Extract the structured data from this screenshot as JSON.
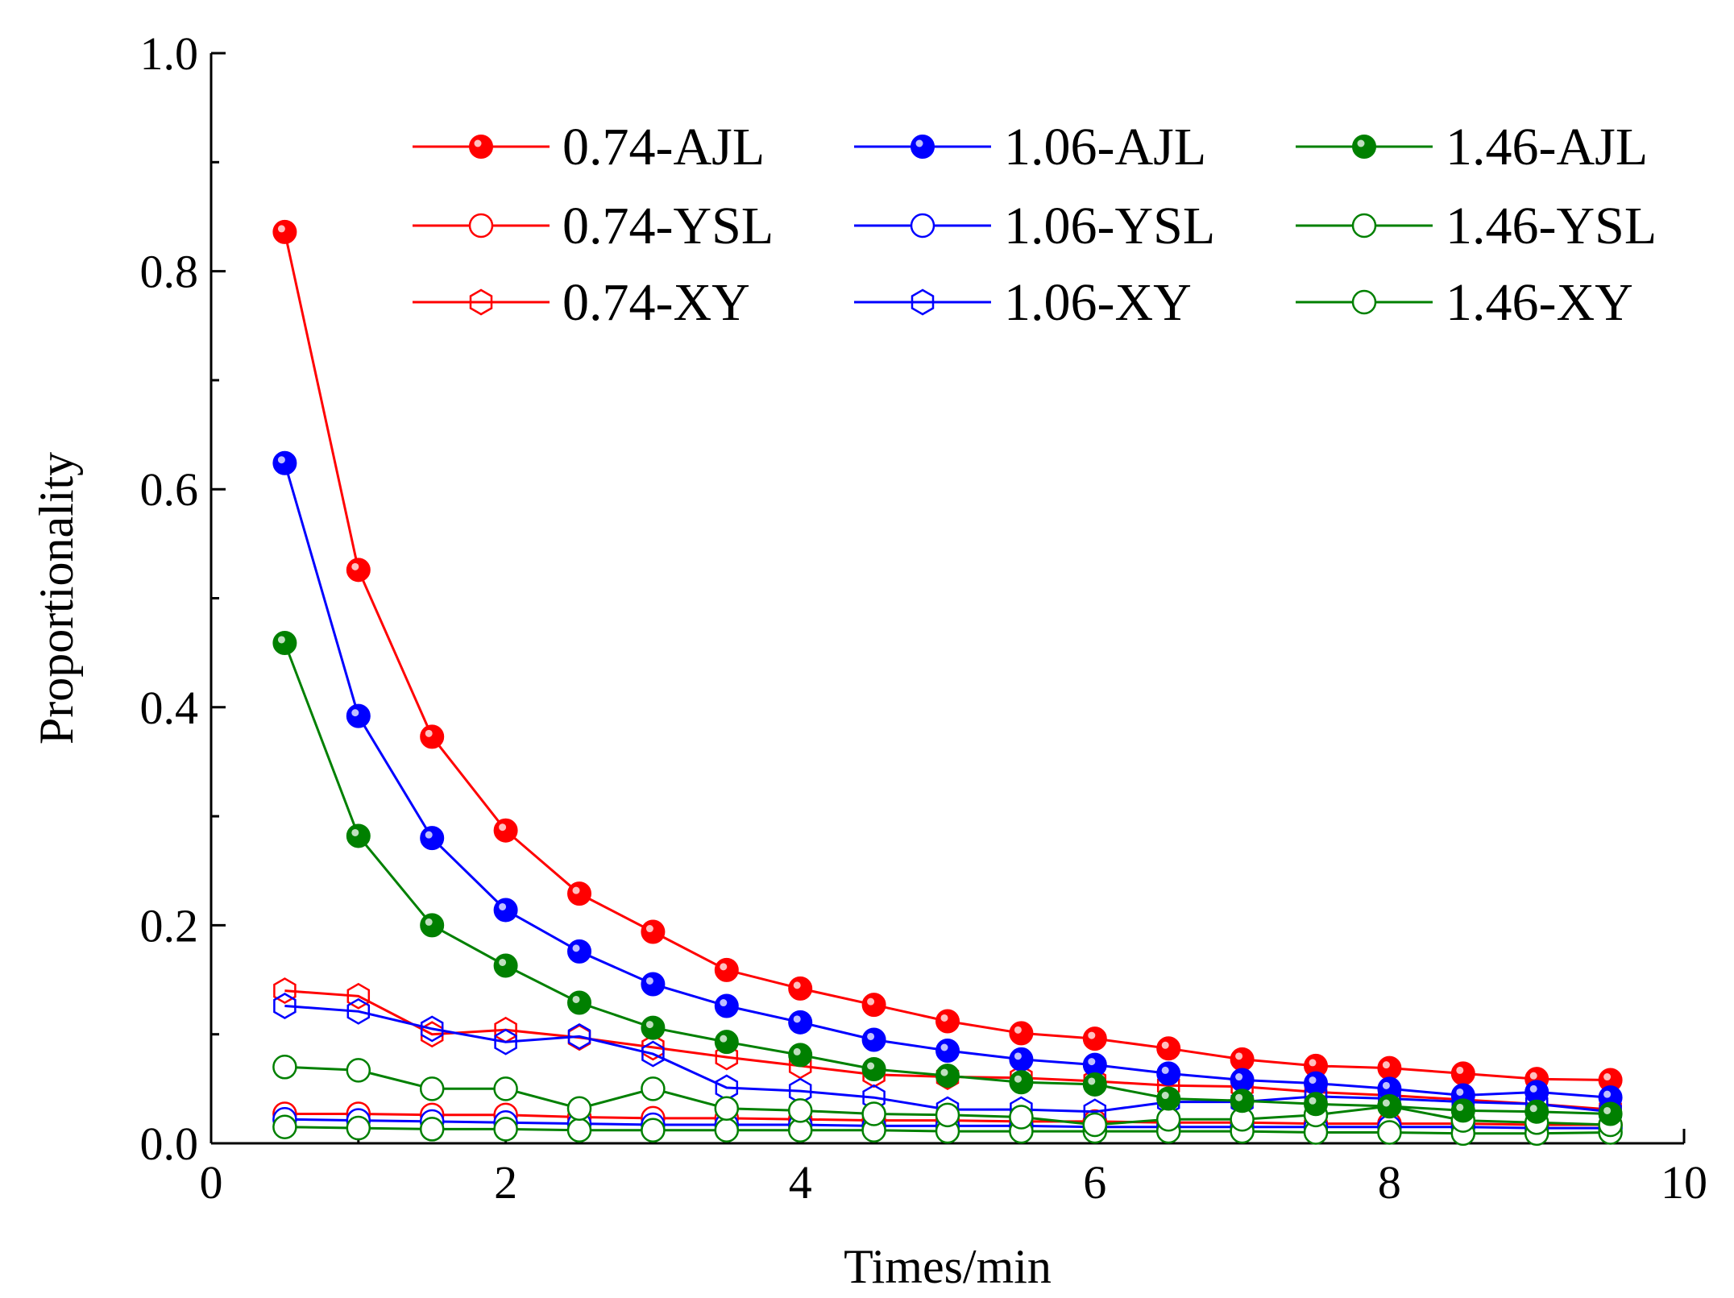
{
  "chart_data": {
    "type": "line",
    "xlabel": "Times/min",
    "ylabel": "Proportionality",
    "xlim": [
      0,
      10
    ],
    "ylim": [
      0,
      1.0
    ],
    "x_ticks": [
      "0",
      "2",
      "4",
      "6",
      "8",
      "10"
    ],
    "y_ticks": [
      "0.0",
      "0.2",
      "0.4",
      "0.6",
      "0.8",
      "1.0"
    ],
    "legend_position": "top-right",
    "grid": false,
    "x": [
      0.5,
      1,
      1.5,
      2,
      2.5,
      3,
      3.5,
      4,
      4.5,
      5,
      5.5,
      6,
      6.5,
      7,
      7.5,
      8,
      8.5,
      9,
      9.5
    ],
    "series": [
      {
        "name": "0.74-AJL",
        "color": "#ff0000",
        "marker": "filled-circle",
        "values": [
          0.836,
          0.526,
          0.373,
          0.287,
          0.229,
          0.194,
          0.159,
          0.142,
          0.127,
          0.112,
          0.101,
          0.096,
          0.087,
          0.077,
          0.071,
          0.069,
          0.064,
          0.059,
          0.058
        ]
      },
      {
        "name": "0.74-YSL",
        "color": "#ff0000",
        "marker": "open-circle",
        "values": [
          0.027,
          0.027,
          0.026,
          0.026,
          0.024,
          0.023,
          0.023,
          0.022,
          0.021,
          0.021,
          0.02,
          0.02,
          0.019,
          0.019,
          0.018,
          0.018,
          0.018,
          0.017,
          0.017
        ]
      },
      {
        "name": "0.74-XY",
        "color": "#ff0000",
        "marker": "open-hexagon",
        "values": [
          0.14,
          0.135,
          0.1,
          0.104,
          0.097,
          0.088,
          0.079,
          0.071,
          0.063,
          0.061,
          0.06,
          0.057,
          0.053,
          0.052,
          0.047,
          0.044,
          0.04,
          0.036,
          0.031
        ]
      },
      {
        "name": "1.06-AJL",
        "color": "#0000ff",
        "marker": "filled-circle",
        "values": [
          0.624,
          0.392,
          0.28,
          0.214,
          0.176,
          0.146,
          0.126,
          0.111,
          0.095,
          0.085,
          0.077,
          0.072,
          0.064,
          0.058,
          0.055,
          0.05,
          0.044,
          0.047,
          0.042
        ]
      },
      {
        "name": "1.06-YSL",
        "color": "#0000ff",
        "marker": "open-circle",
        "values": [
          0.022,
          0.021,
          0.02,
          0.019,
          0.018,
          0.017,
          0.017,
          0.017,
          0.016,
          0.016,
          0.016,
          0.015,
          0.015,
          0.015,
          0.015,
          0.015,
          0.015,
          0.014,
          0.014
        ]
      },
      {
        "name": "1.06-XY",
        "color": "#0000ff",
        "marker": "open-hexagon",
        "values": [
          0.126,
          0.121,
          0.105,
          0.093,
          0.098,
          0.082,
          0.051,
          0.048,
          0.042,
          0.031,
          0.031,
          0.029,
          0.038,
          0.038,
          0.043,
          0.041,
          0.038,
          0.036,
          0.029
        ]
      },
      {
        "name": "1.46-AJL",
        "color": "#008000",
        "marker": "filled-circle",
        "values": [
          0.459,
          0.282,
          0.2,
          0.163,
          0.129,
          0.106,
          0.093,
          0.081,
          0.068,
          0.062,
          0.056,
          0.054,
          0.041,
          0.039,
          0.036,
          0.034,
          0.03,
          0.029,
          0.027
        ]
      },
      {
        "name": "1.46-YSL",
        "color": "#008000",
        "marker": "open-circle",
        "values": [
          0.015,
          0.014,
          0.013,
          0.013,
          0.012,
          0.012,
          0.012,
          0.012,
          0.012,
          0.011,
          0.011,
          0.011,
          0.011,
          0.011,
          0.01,
          0.01,
          0.009,
          0.009,
          0.01
        ]
      },
      {
        "name": "1.46-XY",
        "color": "#008000",
        "marker": "open-circle",
        "values": [
          0.07,
          0.067,
          0.05,
          0.05,
          0.032,
          0.05,
          0.032,
          0.03,
          0.027,
          0.026,
          0.024,
          0.017,
          0.022,
          0.022,
          0.026,
          0.034,
          0.021,
          0.019,
          0.017
        ]
      }
    ]
  }
}
